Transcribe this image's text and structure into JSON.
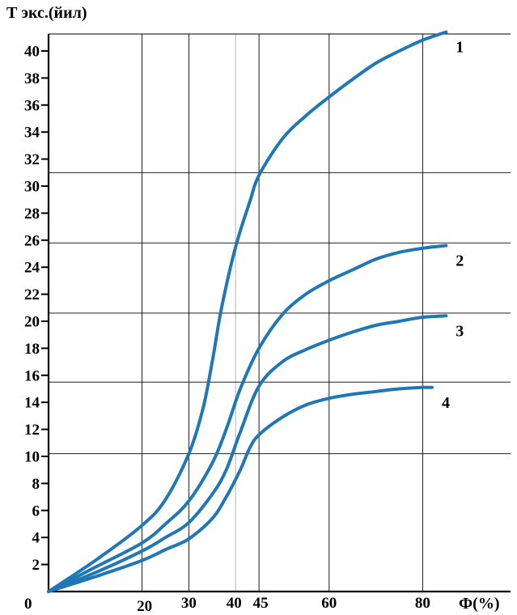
{
  "colors": {
    "curve": "#1f77b4",
    "axis": "#000000",
    "grid": "#000000",
    "grid_faint": "#c8c8c8",
    "background": "#ffffff"
  },
  "chart_data": {
    "type": "line",
    "title": "",
    "ylabel": "Т экс.(йил)",
    "xlabel": "Ф(%)",
    "origin_label": "0",
    "xlim": [
      0,
      100
    ],
    "ylim": [
      0,
      43
    ],
    "x_ticks": [
      20,
      30,
      40,
      45,
      60,
      80
    ],
    "y_ticks": [
      2,
      4,
      6,
      8,
      10,
      12,
      14,
      16,
      18,
      20,
      22,
      24,
      26,
      28,
      30,
      32,
      34,
      36,
      38,
      40
    ],
    "vertical_grid": [
      20,
      30,
      40,
      45,
      60,
      80
    ],
    "horizontal_grid": [
      10.2,
      15.5,
      20.6,
      25.8,
      31.0
    ],
    "grid": true,
    "series": [
      {
        "name": "1",
        "x": [
          0,
          10,
          20,
          25,
          30,
          33,
          35,
          37,
          40,
          43,
          45,
          50,
          55,
          60,
          65,
          70,
          75,
          80,
          85
        ],
        "y": [
          0,
          2.3,
          4.9,
          6.8,
          10.2,
          13.5,
          17,
          21,
          25.5,
          28.8,
          30.8,
          33.5,
          35.2,
          36.6,
          37.9,
          39.1,
          40.0,
          40.8,
          41.4
        ]
      },
      {
        "name": "2",
        "x": [
          0,
          10,
          20,
          25,
          30,
          35,
          38,
          41,
          45,
          50,
          55,
          60,
          65,
          70,
          75,
          80,
          85
        ],
        "y": [
          0,
          1.8,
          3.6,
          5.0,
          6.7,
          9.5,
          12.0,
          15.0,
          18.0,
          20.5,
          22.0,
          23.0,
          23.8,
          24.6,
          25.1,
          25.4,
          25.6
        ]
      },
      {
        "name": "3",
        "x": [
          0,
          10,
          20,
          25,
          30,
          35,
          38,
          41,
          45,
          50,
          55,
          60,
          65,
          70,
          75,
          80,
          85
        ],
        "y": [
          0,
          1.4,
          3.0,
          4.0,
          5.1,
          7.2,
          9.0,
          11.8,
          15.2,
          17.0,
          17.9,
          18.6,
          19.2,
          19.7,
          20.0,
          20.3,
          20.4
        ]
      },
      {
        "name": "4",
        "x": [
          0,
          10,
          20,
          25,
          30,
          35,
          38,
          41,
          43,
          45,
          50,
          55,
          60,
          65,
          70,
          75,
          80,
          82
        ],
        "y": [
          0,
          1.1,
          2.3,
          3.1,
          3.9,
          5.4,
          7.0,
          9.0,
          10.6,
          11.6,
          12.9,
          13.8,
          14.3,
          14.6,
          14.8,
          15.0,
          15.1,
          15.1
        ]
      }
    ]
  }
}
